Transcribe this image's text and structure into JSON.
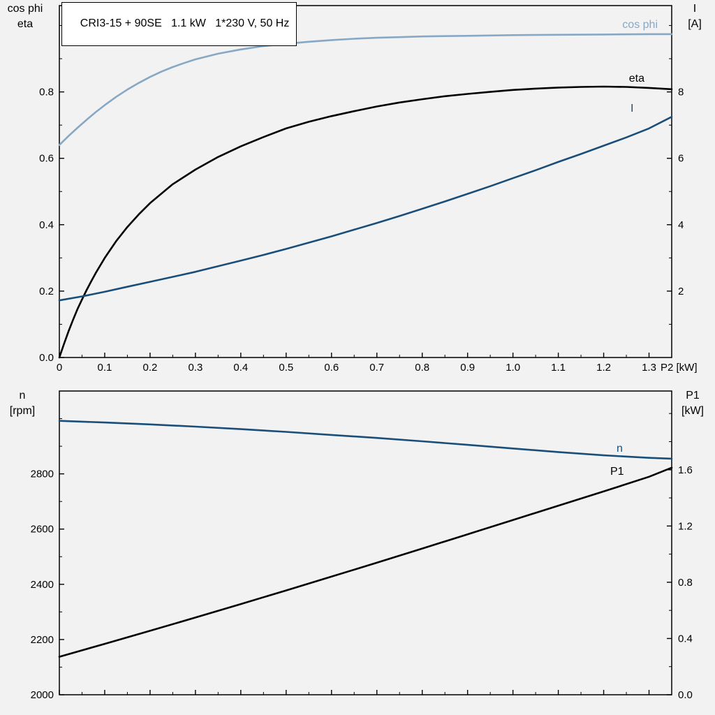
{
  "colors": {
    "black": "#000000",
    "light_blue": "#87a8c5",
    "dark_blue": "#1a4e79",
    "axis": "#000000",
    "background": "#f2f2f2",
    "box_bg": "#ffffff"
  },
  "chart_data": [
    {
      "type": "line",
      "title": "CRI3-15 + 90SE   1.1 kW   1*230 V, 50 Hz",
      "x": {
        "label": "P2 [kW]",
        "min": 0,
        "max": 1.35,
        "major_ticks": [
          0,
          0.1,
          0.2,
          0.3,
          0.4,
          0.5,
          0.6,
          0.7,
          0.8,
          0.9,
          1.0,
          1.1,
          1.2,
          1.3
        ],
        "tick_labels": [
          "0",
          "0.1",
          "0.2",
          "0.3",
          "0.4",
          "0.5",
          "0.6",
          "0.7",
          "0.8",
          "0.9",
          "1.0",
          "1.1",
          "1.2",
          "1.3"
        ],
        "minor_step": 0.05
      },
      "y_left": {
        "label_lines": [
          "cos phi",
          "eta"
        ],
        "min": 0,
        "max": 1.06,
        "major_ticks": [
          0,
          0.2,
          0.4,
          0.6,
          0.8
        ],
        "tick_labels": [
          "0.0",
          "0.2",
          "0.4",
          "0.6",
          "0.8"
        ],
        "minor_step": 0.1
      },
      "y_right": {
        "label_lines": [
          "I",
          "[A]"
        ],
        "min": 0,
        "max": 10.6,
        "major_ticks": [
          2,
          4,
          6,
          8
        ],
        "tick_labels": [
          "2",
          "4",
          "6",
          "8"
        ],
        "minor_step": 1
      },
      "series": [
        {
          "name": "cos phi",
          "axis": "left",
          "color": "light_blue",
          "points": [
            [
              0,
              0.64
            ],
            [
              0.02,
              0.667
            ],
            [
              0.04,
              0.692
            ],
            [
              0.06,
              0.716
            ],
            [
              0.08,
              0.739
            ],
            [
              0.1,
              0.76
            ],
            [
              0.125,
              0.785
            ],
            [
              0.15,
              0.807
            ],
            [
              0.175,
              0.827
            ],
            [
              0.2,
              0.845
            ],
            [
              0.225,
              0.861
            ],
            [
              0.25,
              0.875
            ],
            [
              0.275,
              0.887
            ],
            [
              0.3,
              0.898
            ],
            [
              0.35,
              0.915
            ],
            [
              0.4,
              0.928
            ],
            [
              0.45,
              0.938
            ],
            [
              0.5,
              0.945
            ],
            [
              0.55,
              0.951
            ],
            [
              0.6,
              0.956
            ],
            [
              0.65,
              0.96
            ],
            [
              0.7,
              0.963
            ],
            [
              0.75,
              0.965
            ],
            [
              0.8,
              0.967
            ],
            [
              0.85,
              0.968
            ],
            [
              0.9,
              0.969
            ],
            [
              1.0,
              0.971
            ],
            [
              1.1,
              0.972
            ],
            [
              1.2,
              0.973
            ],
            [
              1.3,
              0.974
            ],
            [
              1.35,
              0.974
            ]
          ]
        },
        {
          "name": "eta",
          "axis": "left",
          "color": "black",
          "points": [
            [
              0,
              0
            ],
            [
              0.01,
              0.04
            ],
            [
              0.02,
              0.078
            ],
            [
              0.03,
              0.113
            ],
            [
              0.04,
              0.146
            ],
            [
              0.05,
              0.175
            ],
            [
              0.06,
              0.203
            ],
            [
              0.07,
              0.229
            ],
            [
              0.08,
              0.254
            ],
            [
              0.09,
              0.277
            ],
            [
              0.1,
              0.3
            ],
            [
              0.125,
              0.35
            ],
            [
              0.15,
              0.393
            ],
            [
              0.175,
              0.431
            ],
            [
              0.2,
              0.465
            ],
            [
              0.25,
              0.522
            ],
            [
              0.3,
              0.566
            ],
            [
              0.35,
              0.604
            ],
            [
              0.4,
              0.636
            ],
            [
              0.45,
              0.664
            ],
            [
              0.5,
              0.69
            ],
            [
              0.55,
              0.71
            ],
            [
              0.6,
              0.727
            ],
            [
              0.65,
              0.742
            ],
            [
              0.7,
              0.756
            ],
            [
              0.75,
              0.768
            ],
            [
              0.8,
              0.778
            ],
            [
              0.85,
              0.787
            ],
            [
              0.9,
              0.794
            ],
            [
              0.95,
              0.8
            ],
            [
              1.0,
              0.806
            ],
            [
              1.05,
              0.81
            ],
            [
              1.1,
              0.813
            ],
            [
              1.15,
              0.815
            ],
            [
              1.2,
              0.816
            ],
            [
              1.25,
              0.815
            ],
            [
              1.3,
              0.812
            ],
            [
              1.35,
              0.808
            ]
          ]
        },
        {
          "name": "I",
          "axis": "right",
          "color": "dark_blue",
          "points": [
            [
              0,
              1.72
            ],
            [
              0.05,
              1.84
            ],
            [
              0.1,
              1.98
            ],
            [
              0.15,
              2.13
            ],
            [
              0.2,
              2.28
            ],
            [
              0.25,
              2.43
            ],
            [
              0.3,
              2.58
            ],
            [
              0.35,
              2.75
            ],
            [
              0.4,
              2.92
            ],
            [
              0.45,
              3.09
            ],
            [
              0.5,
              3.27
            ],
            [
              0.55,
              3.46
            ],
            [
              0.6,
              3.65
            ],
            [
              0.65,
              3.85
            ],
            [
              0.7,
              4.05
            ],
            [
              0.75,
              4.26
            ],
            [
              0.8,
              4.48
            ],
            [
              0.85,
              4.7
            ],
            [
              0.9,
              4.93
            ],
            [
              0.95,
              5.16
            ],
            [
              1.0,
              5.4
            ],
            [
              1.05,
              5.64
            ],
            [
              1.1,
              5.89
            ],
            [
              1.15,
              6.13
            ],
            [
              1.2,
              6.38
            ],
            [
              1.25,
              6.63
            ],
            [
              1.3,
              6.9
            ],
            [
              1.35,
              7.25
            ]
          ]
        }
      ]
    },
    {
      "type": "line",
      "title": "",
      "x": {
        "label": "",
        "min": 0,
        "max": 1.35,
        "major_ticks": [
          0,
          0.1,
          0.2,
          0.3,
          0.4,
          0.5,
          0.6,
          0.7,
          0.8,
          0.9,
          1.0,
          1.1,
          1.2,
          1.3
        ],
        "tick_labels": null,
        "minor_step": 0.05
      },
      "y_left": {
        "label_lines": [
          "n",
          "[rpm]"
        ],
        "min": 2000,
        "max": 3100,
        "major_ticks": [
          2000,
          2200,
          2400,
          2600,
          2800
        ],
        "tick_labels": [
          "2000",
          "2200",
          "2400",
          "2600",
          "2800"
        ],
        "minor_step": 100
      },
      "y_right": {
        "label_lines": [
          "P1",
          "[kW]"
        ],
        "min": 0,
        "max": 2.16,
        "major_ticks": [
          0,
          0.4,
          0.8,
          1.2,
          1.6
        ],
        "tick_labels": [
          "0.0",
          "0.4",
          "0.8",
          "1.2",
          "1.6"
        ],
        "minor_step": 0.2
      },
      "series": [
        {
          "name": "n",
          "axis": "left",
          "color": "dark_blue",
          "points": [
            [
              0,
              2992
            ],
            [
              0.1,
              2986
            ],
            [
              0.2,
              2979
            ],
            [
              0.3,
              2971
            ],
            [
              0.4,
              2962
            ],
            [
              0.5,
              2952
            ],
            [
              0.6,
              2941
            ],
            [
              0.7,
              2930
            ],
            [
              0.8,
              2918
            ],
            [
              0.9,
              2905
            ],
            [
              1.0,
              2892
            ],
            [
              1.1,
              2879
            ],
            [
              1.2,
              2867
            ],
            [
              1.3,
              2858
            ],
            [
              1.35,
              2855
            ]
          ]
        },
        {
          "name": "P1",
          "axis": "right",
          "color": "black",
          "points": [
            [
              0,
              0.27
            ],
            [
              0.1,
              0.362
            ],
            [
              0.2,
              0.455
            ],
            [
              0.3,
              0.549
            ],
            [
              0.4,
              0.645
            ],
            [
              0.5,
              0.742
            ],
            [
              0.6,
              0.84
            ],
            [
              0.7,
              0.939
            ],
            [
              0.8,
              1.04
            ],
            [
              0.9,
              1.141
            ],
            [
              1.0,
              1.243
            ],
            [
              1.1,
              1.344
            ],
            [
              1.2,
              1.446
            ],
            [
              1.3,
              1.55
            ],
            [
              1.35,
              1.615
            ]
          ]
        }
      ]
    }
  ]
}
